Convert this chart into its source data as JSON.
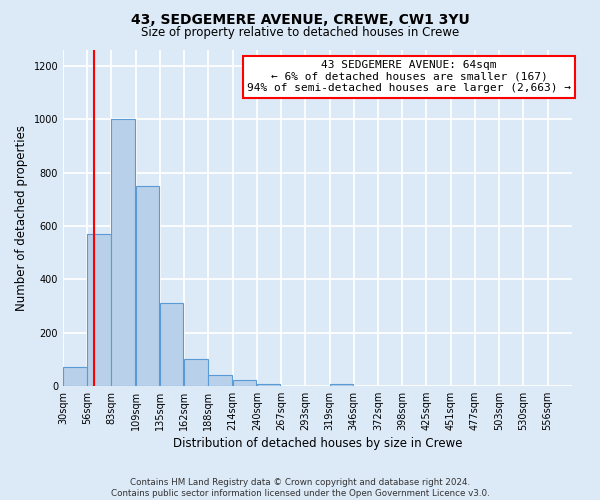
{
  "title": "43, SEDGEMERE AVENUE, CREWE, CW1 3YU",
  "subtitle": "Size of property relative to detached houses in Crewe",
  "xlabel": "Distribution of detached houses by size in Crewe",
  "ylabel": "Number of detached properties",
  "bar_labels": [
    "30sqm",
    "56sqm",
    "83sqm",
    "109sqm",
    "135sqm",
    "162sqm",
    "188sqm",
    "214sqm",
    "240sqm",
    "267sqm",
    "293sqm",
    "319sqm",
    "346sqm",
    "372sqm",
    "398sqm",
    "425sqm",
    "451sqm",
    "477sqm",
    "503sqm",
    "530sqm",
    "556sqm"
  ],
  "bar_values": [
    70,
    570,
    1000,
    750,
    310,
    100,
    40,
    20,
    5,
    0,
    0,
    5,
    0,
    0,
    0,
    0,
    0,
    0,
    0,
    0,
    0
  ],
  "bar_color": "#b8d0ea",
  "bar_edge_color": "#5b9bd5",
  "ylim": [
    0,
    1260
  ],
  "yticks": [
    0,
    200,
    400,
    600,
    800,
    1000,
    1200
  ],
  "property_line_x": 64,
  "annotation_line1": "43 SEDGEMERE AVENUE: 64sqm",
  "annotation_line2": "← 6% of detached houses are smaller (167)",
  "annotation_line3": "94% of semi-detached houses are larger (2,663) →",
  "footer_line1": "Contains HM Land Registry data © Crown copyright and database right 2024.",
  "footer_line2": "Contains public sector information licensed under the Open Government Licence v3.0.",
  "background_color": "#dce9f7",
  "plot_bg_color": "#dce9f7",
  "grid_color": "#ffffff",
  "bin_width": 27
}
